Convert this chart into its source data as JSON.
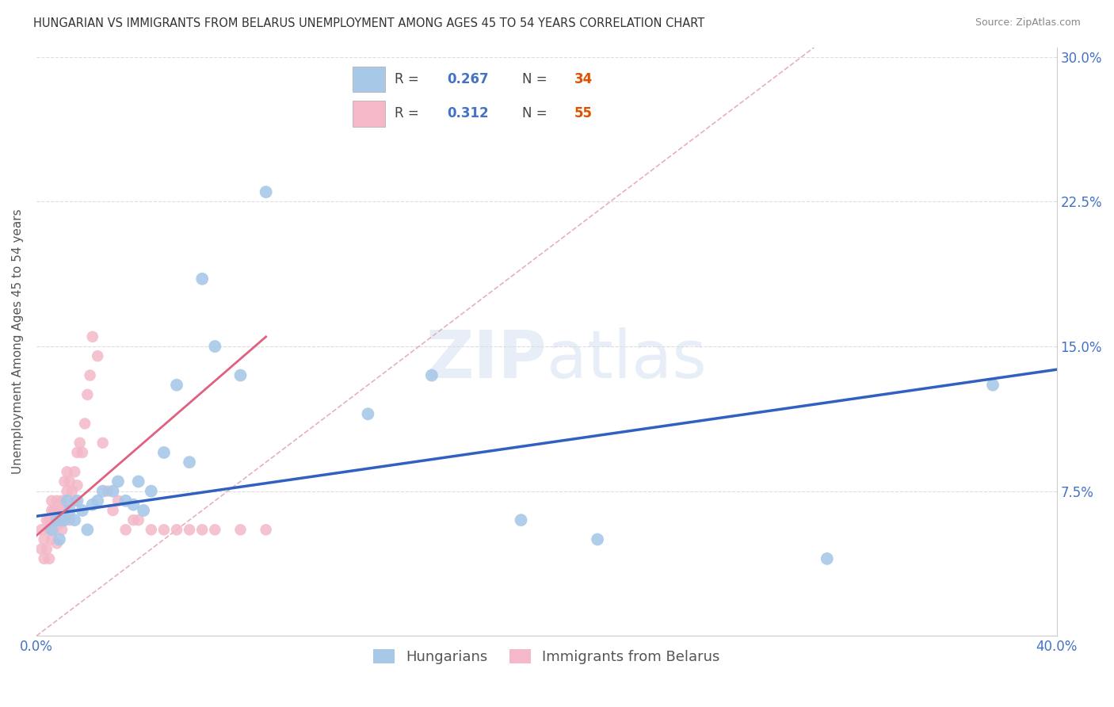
{
  "title": "HUNGARIAN VS IMMIGRANTS FROM BELARUS UNEMPLOYMENT AMONG AGES 45 TO 54 YEARS CORRELATION CHART",
  "source": "Source: ZipAtlas.com",
  "ylabel": "Unemployment Among Ages 45 to 54 years",
  "xlim": [
    0.0,
    0.4
  ],
  "ylim": [
    0.0,
    0.305
  ],
  "xticks": [
    0.0,
    0.1,
    0.2,
    0.3,
    0.4
  ],
  "xticklabels": [
    "0.0%",
    "",
    "",
    "",
    "40.0%"
  ],
  "yticks": [
    0.0,
    0.075,
    0.15,
    0.225,
    0.3
  ],
  "yticklabels": [
    "",
    "7.5%",
    "15.0%",
    "22.5%",
    "30.0%"
  ],
  "legend_R_blue": "0.267",
  "legend_N_blue": "34",
  "legend_R_pink": "0.312",
  "legend_N_pink": "55",
  "legend_label_blue": "Hungarians",
  "legend_label_pink": "Immigrants from Belarus",
  "blue_color": "#a8c8e8",
  "pink_color": "#f4b8c8",
  "blue_line_color": "#3060c0",
  "pink_line_color": "#e06080",
  "ref_line_color": "#e8b0b8",
  "watermark_zip": "ZIP",
  "watermark_atlas": "atlas",
  "blue_scatter_x": [
    0.006,
    0.008,
    0.009,
    0.01,
    0.011,
    0.012,
    0.013,
    0.015,
    0.016,
    0.018,
    0.02,
    0.022,
    0.024,
    0.026,
    0.03,
    0.032,
    0.035,
    0.038,
    0.04,
    0.042,
    0.045,
    0.05,
    0.055,
    0.06,
    0.065,
    0.07,
    0.08,
    0.09,
    0.13,
    0.155,
    0.19,
    0.22,
    0.31,
    0.375
  ],
  "blue_scatter_y": [
    0.055,
    0.06,
    0.05,
    0.06,
    0.06,
    0.07,
    0.065,
    0.06,
    0.07,
    0.065,
    0.055,
    0.068,
    0.07,
    0.075,
    0.075,
    0.08,
    0.07,
    0.068,
    0.08,
    0.065,
    0.075,
    0.095,
    0.13,
    0.09,
    0.185,
    0.15,
    0.135,
    0.23,
    0.115,
    0.135,
    0.06,
    0.05,
    0.04,
    0.13
  ],
  "pink_scatter_x": [
    0.002,
    0.002,
    0.003,
    0.003,
    0.004,
    0.004,
    0.005,
    0.005,
    0.005,
    0.006,
    0.006,
    0.006,
    0.007,
    0.007,
    0.008,
    0.008,
    0.008,
    0.009,
    0.009,
    0.01,
    0.01,
    0.01,
    0.011,
    0.011,
    0.012,
    0.012,
    0.013,
    0.013,
    0.014,
    0.015,
    0.015,
    0.016,
    0.016,
    0.017,
    0.018,
    0.019,
    0.02,
    0.021,
    0.022,
    0.024,
    0.026,
    0.028,
    0.03,
    0.032,
    0.035,
    0.038,
    0.04,
    0.045,
    0.05,
    0.055,
    0.06,
    0.065,
    0.07,
    0.08,
    0.09
  ],
  "pink_scatter_y": [
    0.055,
    0.045,
    0.05,
    0.04,
    0.06,
    0.045,
    0.06,
    0.055,
    0.04,
    0.07,
    0.065,
    0.05,
    0.065,
    0.055,
    0.07,
    0.06,
    0.048,
    0.065,
    0.058,
    0.065,
    0.07,
    0.055,
    0.08,
    0.065,
    0.075,
    0.085,
    0.08,
    0.06,
    0.075,
    0.085,
    0.07,
    0.095,
    0.078,
    0.1,
    0.095,
    0.11,
    0.125,
    0.135,
    0.155,
    0.145,
    0.1,
    0.075,
    0.065,
    0.07,
    0.055,
    0.06,
    0.06,
    0.055,
    0.055,
    0.055,
    0.055,
    0.055,
    0.055,
    0.055,
    0.055
  ],
  "blue_trend_x0": 0.0,
  "blue_trend_y0": 0.062,
  "blue_trend_x1": 0.4,
  "blue_trend_y1": 0.138,
  "pink_trend_x0": 0.0,
  "pink_trend_y0": 0.052,
  "pink_trend_x1": 0.09,
  "pink_trend_y1": 0.155
}
